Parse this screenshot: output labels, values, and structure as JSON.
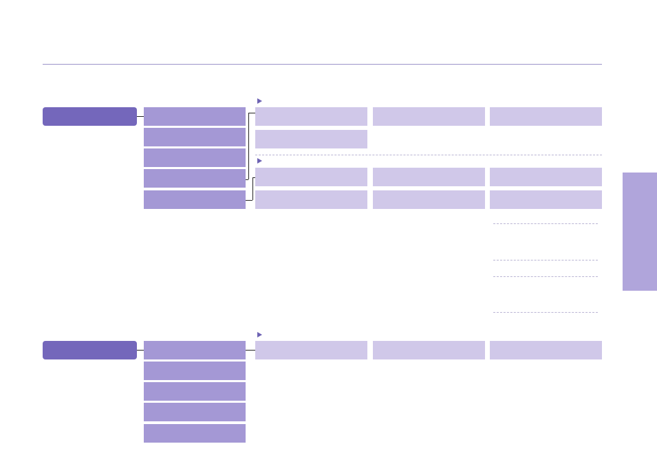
{
  "colors": {
    "root_node": "#7467bb",
    "menu_item": "#a498d5",
    "option_item": "#d0c8e9",
    "side_tab": "#b0a5db",
    "rule": "#9b93c9",
    "arrow": "#6d62b3",
    "connector": "#222222"
  },
  "icons": {
    "section_marker": "triangle-right-icon"
  },
  "sections": [
    {
      "root_label": "",
      "items": [
        "",
        "",
        "",
        "",
        ""
      ],
      "groups": [
        {
          "options": [
            "",
            "",
            "",
            ""
          ]
        },
        {
          "options": [
            "",
            "",
            "",
            "",
            "",
            ""
          ]
        }
      ]
    },
    {
      "root_label": "",
      "items": [
        "",
        "",
        "",
        "",
        ""
      ],
      "groups": [
        {
          "options": [
            "",
            "",
            ""
          ]
        }
      ]
    }
  ],
  "side_tab_label": ""
}
